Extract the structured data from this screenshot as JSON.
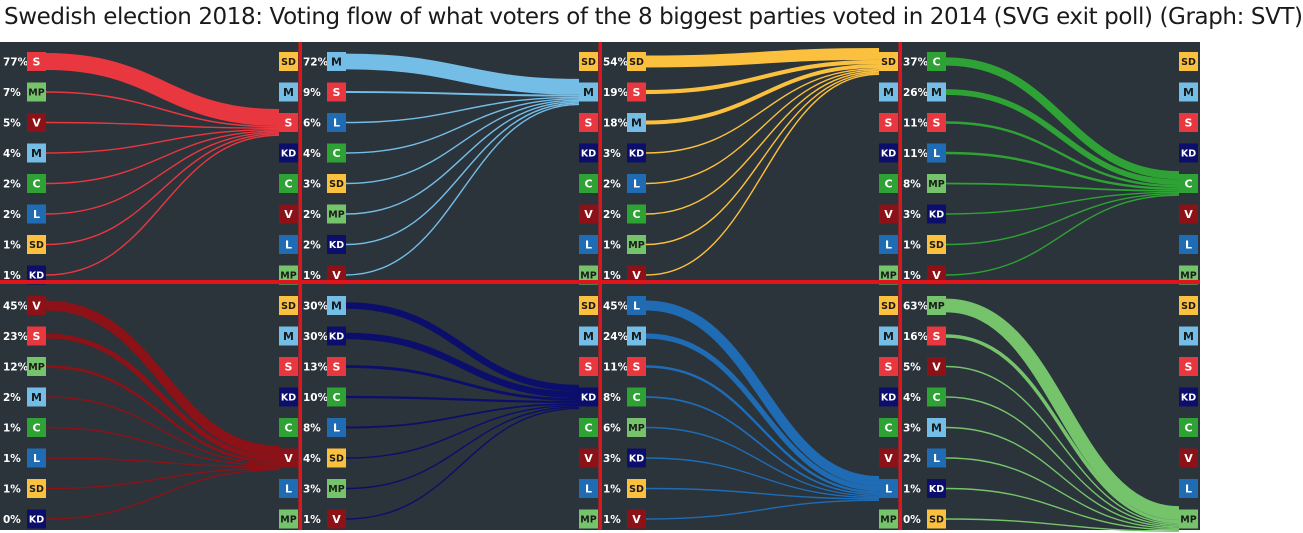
{
  "title": "Swedish election 2018: Voting flow of what voters of the 8 biggest parties voted in 2014 (SVG exit poll) (Graph: SVT)",
  "colors": {
    "background": "#2b333b",
    "divider": "#e0141b",
    "S": "#e8373f",
    "SD": "#fbc13e",
    "M": "#74bde6",
    "L": "#1f6cb5",
    "KD": "#0b0f6b",
    "C": "#2ea234",
    "V": "#8c1217",
    "MP": "#75c46c"
  },
  "chart_data": [
    {
      "type": "sankey",
      "target": "S",
      "sources": [
        "S",
        "MP",
        "V",
        "M",
        "C",
        "L",
        "SD",
        "KD"
      ],
      "labels": [
        "77%",
        "7%",
        "5%",
        "4%",
        "2%",
        "2%",
        "1%",
        "1%"
      ],
      "values": [
        77,
        7,
        5,
        4,
        2,
        2,
        1,
        1
      ],
      "destinations": [
        "SD",
        "M",
        "S",
        "KD",
        "C",
        "V",
        "L",
        "MP"
      ]
    },
    {
      "type": "sankey",
      "target": "M",
      "sources": [
        "M",
        "S",
        "L",
        "C",
        "SD",
        "MP",
        "KD",
        "V"
      ],
      "labels": [
        "72%",
        "9%",
        "6%",
        "4%",
        "3%",
        "2%",
        "2%",
        "1%"
      ],
      "values": [
        72,
        9,
        6,
        4,
        3,
        2,
        2,
        1
      ],
      "destinations": [
        "SD",
        "M",
        "S",
        "KD",
        "C",
        "V",
        "L",
        "MP"
      ]
    },
    {
      "type": "sankey",
      "target": "SD",
      "sources": [
        "SD",
        "S",
        "M",
        "KD",
        "L",
        "C",
        "MP",
        "V"
      ],
      "labels": [
        "54%",
        "19%",
        "18%",
        "3%",
        "2%",
        "2%",
        "1%",
        "1%"
      ],
      "values": [
        54,
        19,
        18,
        3,
        2,
        2,
        1,
        1
      ],
      "destinations": [
        "SD",
        "M",
        "S",
        "KD",
        "C",
        "V",
        "L",
        "MP"
      ]
    },
    {
      "type": "sankey",
      "target": "C",
      "sources": [
        "C",
        "M",
        "S",
        "L",
        "MP",
        "KD",
        "SD",
        "V"
      ],
      "labels": [
        "37%",
        "26%",
        "11%",
        "11%",
        "8%",
        "3%",
        "1%",
        "1%"
      ],
      "values": [
        37,
        26,
        11,
        11,
        8,
        3,
        1,
        1
      ],
      "destinations": [
        "SD",
        "M",
        "S",
        "KD",
        "C",
        "V",
        "L",
        "MP"
      ]
    },
    {
      "type": "sankey",
      "target": "V",
      "sources": [
        "V",
        "S",
        "MP",
        "M",
        "C",
        "L",
        "SD",
        "KD"
      ],
      "labels": [
        "45%",
        "23%",
        "12%",
        "2%",
        "1%",
        "1%",
        "1%",
        "0%"
      ],
      "values": [
        45,
        23,
        12,
        2,
        1,
        1,
        1,
        0
      ],
      "destinations": [
        "SD",
        "M",
        "S",
        "KD",
        "C",
        "V",
        "L",
        "MP"
      ]
    },
    {
      "type": "sankey",
      "target": "KD",
      "sources": [
        "M",
        "KD",
        "S",
        "C",
        "L",
        "SD",
        "MP",
        "V"
      ],
      "labels": [
        "30%",
        "30%",
        "13%",
        "10%",
        "8%",
        "4%",
        "3%",
        "1%"
      ],
      "values": [
        30,
        30,
        13,
        10,
        8,
        4,
        3,
        1
      ],
      "destinations": [
        "SD",
        "M",
        "S",
        "KD",
        "C",
        "V",
        "L",
        "MP"
      ]
    },
    {
      "type": "sankey",
      "target": "L",
      "sources": [
        "L",
        "M",
        "S",
        "C",
        "MP",
        "KD",
        "SD",
        "V"
      ],
      "labels": [
        "45%",
        "24%",
        "11%",
        "8%",
        "6%",
        "3%",
        "1%",
        "1%"
      ],
      "values": [
        45,
        24,
        11,
        8,
        6,
        3,
        1,
        1
      ],
      "destinations": [
        "SD",
        "M",
        "S",
        "KD",
        "C",
        "V",
        "L",
        "MP"
      ]
    },
    {
      "type": "sankey",
      "target": "MP",
      "sources": [
        "MP",
        "S",
        "V",
        "C",
        "M",
        "L",
        "KD",
        "SD"
      ],
      "labels": [
        "63%",
        "16%",
        "5%",
        "4%",
        "3%",
        "2%",
        "1%",
        "0%"
      ],
      "values": [
        63,
        16,
        5,
        4,
        3,
        2,
        1,
        0
      ],
      "destinations": [
        "SD",
        "M",
        "S",
        "KD",
        "C",
        "V",
        "L",
        "MP"
      ]
    }
  ]
}
